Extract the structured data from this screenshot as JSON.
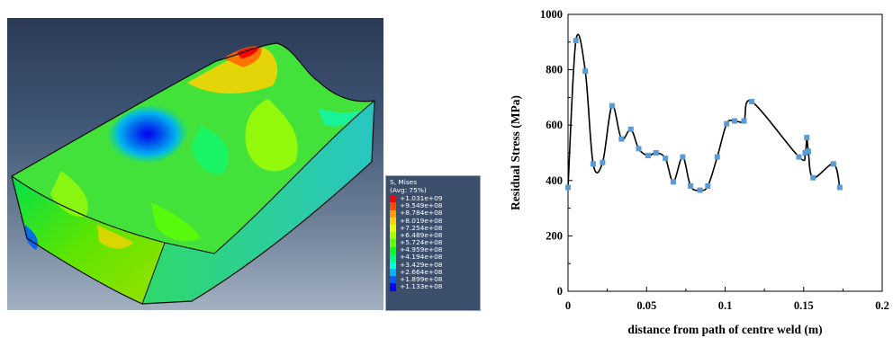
{
  "fe_legend": {
    "title_line1": "S, Mises",
    "title_line2": "(Avg: 75%)",
    "entries": [
      {
        "label": "+1.031e+09",
        "color": "#ff0000"
      },
      {
        "label": "+9.549e+08",
        "color": "#ff4d00"
      },
      {
        "label": "+8.784e+08",
        "color": "#ff9900"
      },
      {
        "label": "+8.019e+08",
        "color": "#ffd200"
      },
      {
        "label": "+7.254e+08",
        "color": "#e6ff00"
      },
      {
        "label": "+6.489e+08",
        "color": "#a6ff00"
      },
      {
        "label": "+5.724e+08",
        "color": "#5eff00"
      },
      {
        "label": "+4.959e+08",
        "color": "#00ff1a"
      },
      {
        "label": "+4.194e+08",
        "color": "#00ff80"
      },
      {
        "label": "+3.429e+08",
        "color": "#00ffd9"
      },
      {
        "label": "+2.664e+08",
        "color": "#00b3ff"
      },
      {
        "label": "+1.899e+08",
        "color": "#0059ff"
      },
      {
        "label": "+1.133e+08",
        "color": "#0000ff"
      }
    ]
  },
  "chart_data": {
    "type": "line",
    "xlabel": "distance from path of centre weld (m)",
    "ylabel": "Residual Stress (MPa)",
    "xlim": [
      0,
      0.2
    ],
    "ylim": [
      0,
      1000
    ],
    "x_ticks": [
      0,
      0.05,
      0.1,
      0.15,
      0.2
    ],
    "x_tick_labels": [
      "0",
      "0.05",
      "0.1",
      "0.15",
      "0.2"
    ],
    "y_ticks": [
      0,
      200,
      400,
      600,
      800,
      1000
    ],
    "y_tick_labels": [
      "0",
      "200",
      "400",
      "600",
      "800",
      "1000"
    ],
    "line_color": "#000000",
    "marker_color": "#5b9bd5",
    "series": [
      {
        "x": [
          0.0,
          0.005,
          0.011,
          0.016,
          0.022,
          0.028,
          0.034,
          0.04,
          0.045,
          0.051,
          0.056,
          0.062,
          0.067,
          0.073,
          0.078,
          0.084,
          0.089,
          0.095,
          0.101,
          0.106,
          0.112,
          0.117,
          0.147,
          0.151,
          0.152,
          0.153,
          0.156,
          0.169,
          0.173
        ],
        "y": [
          375,
          905,
          795,
          460,
          465,
          670,
          550,
          585,
          515,
          490,
          500,
          480,
          395,
          485,
          380,
          365,
          380,
          485,
          605,
          615,
          615,
          685,
          485,
          500,
          555,
          505,
          410,
          460,
          375
        ]
      }
    ]
  }
}
